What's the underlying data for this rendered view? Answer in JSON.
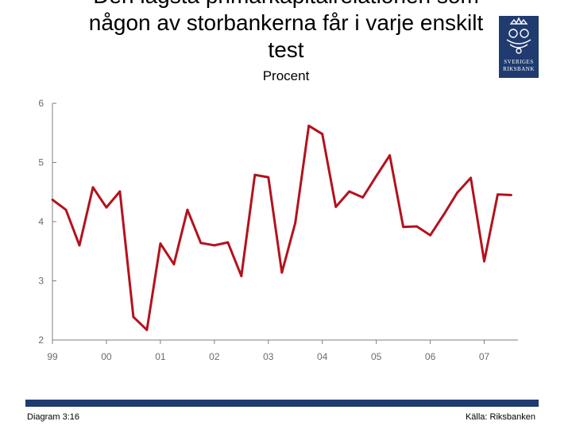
{
  "chart_data": {
    "type": "line",
    "title": [
      "Den lägsta primärkapitalrelationen som",
      "någon av storbankerna får i varje enskilt",
      "test"
    ],
    "subtitle": "Procent",
    "ylim": [
      2,
      6
    ],
    "yticks": [
      "2",
      "3",
      "4",
      "5",
      "6"
    ],
    "xlim": [
      0,
      34.5
    ],
    "x_tick_labels": [
      {
        "label": "99",
        "x": 0
      },
      {
        "label": "00",
        "x": 4
      },
      {
        "label": "01",
        "x": 8
      },
      {
        "label": "02",
        "x": 12
      },
      {
        "label": "03",
        "x": 16
      },
      {
        "label": "04",
        "x": 20
      },
      {
        "label": "05",
        "x": 24
      },
      {
        "label": "06",
        "x": 28
      },
      {
        "label": "07",
        "x": 32
      }
    ],
    "series": [
      {
        "name": "Primärkapitalrelation",
        "color": "#b3121d",
        "x": [
          0,
          1,
          2,
          3,
          4,
          5,
          6,
          7,
          8,
          9,
          10,
          11,
          12,
          13,
          14,
          15,
          16,
          17,
          18,
          19,
          20,
          21,
          22,
          23,
          24,
          25,
          26,
          27,
          28,
          29,
          30,
          31,
          32,
          33,
          34
        ],
        "values": [
          4.37,
          4.2,
          3.6,
          4.58,
          4.24,
          4.51,
          2.39,
          2.17,
          3.63,
          3.28,
          4.2,
          3.64,
          3.6,
          3.65,
          3.08,
          4.79,
          4.75,
          3.14,
          3.98,
          5.62,
          5.48,
          4.25,
          4.51,
          4.41,
          4.77,
          5.12,
          3.91,
          3.92,
          3.77,
          4.12,
          4.49,
          4.74,
          3.33,
          4.46,
          4.45
        ]
      }
    ]
  },
  "logo": {
    "line1": "SVERIGES",
    "line2": "RIKSBANK"
  },
  "footer": {
    "left": "Diagram 3:16",
    "right": "Källa: Riksbanken"
  }
}
